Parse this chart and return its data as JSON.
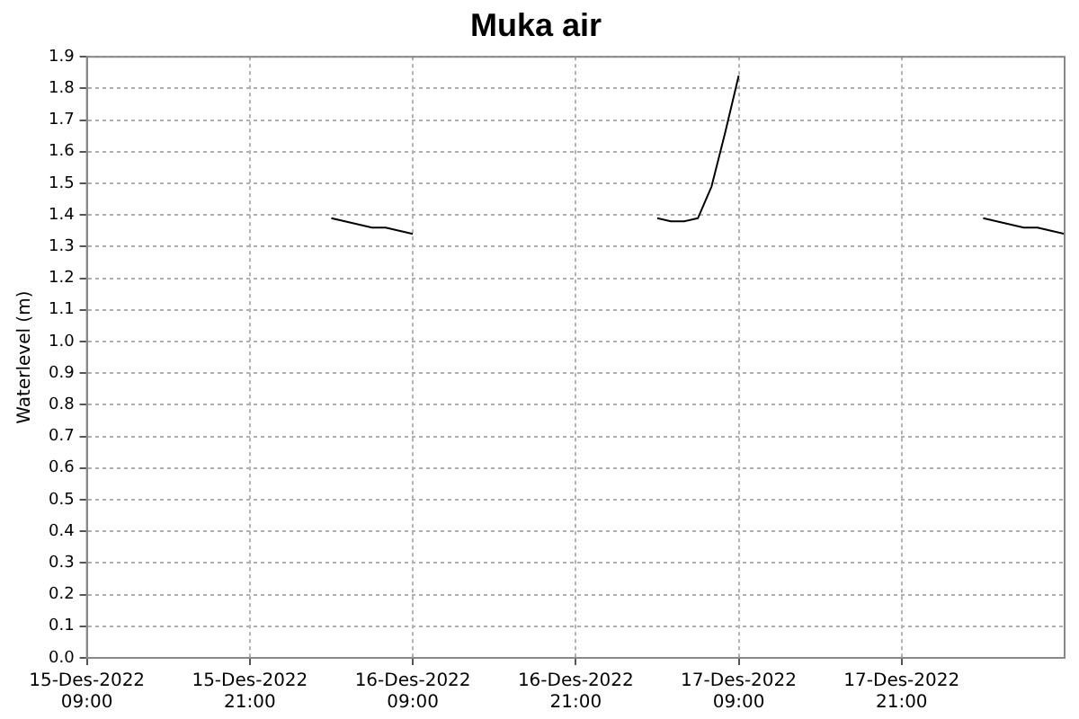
{
  "chart_data": {
    "type": "line",
    "title": "Muka air",
    "ylabel": "Waterlevel (m)",
    "x": [
      "2022-12-16T03:00",
      "2022-12-16T04:00",
      "2022-12-16T05:00",
      "2022-12-16T06:00",
      "2022-12-16T07:00",
      "2022-12-16T08:00",
      "2022-12-16T09:00",
      "2022-12-16T10:00",
      "2022-12-17T02:00",
      "2022-12-17T03:00",
      "2022-12-17T04:00",
      "2022-12-17T05:00",
      "2022-12-17T06:00",
      "2022-12-17T07:00",
      "2022-12-17T08:00",
      "2022-12-17T09:00",
      "2022-12-17T10:00",
      "2022-12-18T02:00",
      "2022-12-18T03:00",
      "2022-12-18T04:00",
      "2022-12-18T05:00",
      "2022-12-18T06:00",
      "2022-12-18T07:00",
      "2022-12-18T08:00",
      "2022-12-18T09:00"
    ],
    "series": [
      {
        "color": "#000000",
        "values": [
          1.39,
          1.38,
          1.37,
          1.36,
          1.36,
          1.35,
          1.34,
          null,
          null,
          1.39,
          1.38,
          1.38,
          1.39,
          1.49,
          1.66,
          1.84,
          null,
          null,
          1.39,
          1.38,
          1.37,
          1.36,
          1.36,
          1.35,
          1.34
        ]
      }
    ],
    "xlim": [
      "2022-12-15T09:00",
      "2022-12-18T09:00"
    ],
    "xticks": [
      {
        "value": "2022-12-15T09:00",
        "label": "15-Des-2022 09:00"
      },
      {
        "value": "2022-12-15T21:00",
        "label": "15-Des-2022 21:00"
      },
      {
        "value": "2022-12-16T09:00",
        "label": "16-Des-2022 09:00"
      },
      {
        "value": "2022-12-16T21:00",
        "label": "16-Des-2022 21:00"
      },
      {
        "value": "2022-12-17T09:00",
        "label": "17-Des-2022 09:00"
      },
      {
        "value": "2022-12-17T21:00",
        "label": "17-Des-2022 21:00"
      }
    ],
    "ylim": [
      0,
      1.9
    ],
    "yticks": [
      {
        "value": 0,
        "label": "0.0"
      },
      0.1,
      0.2,
      0.3,
      0.4,
      0.5,
      0.6,
      0.7,
      0.8,
      0.9,
      {
        "value": 1,
        "label": "1.0"
      },
      1.1,
      1.2,
      1.3,
      1.4,
      1.5,
      1.6,
      1.7,
      1.8,
      1.9
    ],
    "grid": true,
    "line_style": "solid",
    "marker": "none"
  }
}
